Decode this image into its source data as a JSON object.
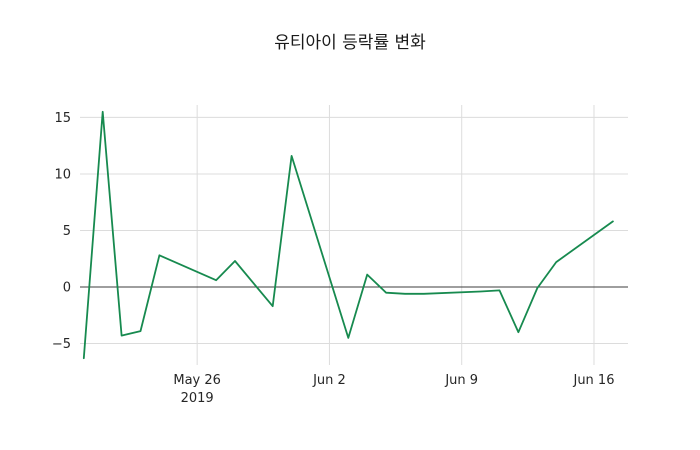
{
  "chart_data": {
    "type": "line",
    "title": "유티아이 등락률 변화",
    "line_color": "#178a4f",
    "grid": true,
    "legend": "none",
    "xlim": [
      -0.2,
      28.8
    ],
    "ylim": [
      -6.9,
      16.1
    ],
    "y_ticks": [
      {
        "value": 15,
        "label": "15"
      },
      {
        "value": 10,
        "label": "10"
      },
      {
        "value": 5,
        "label": "5"
      },
      {
        "value": 0,
        "label": "0"
      },
      {
        "value": -5,
        "label": "−5"
      }
    ],
    "x_ticks": [
      {
        "day": 6,
        "label": "May 26",
        "sublabel": "2019"
      },
      {
        "day": 13,
        "label": "Jun 2",
        "sublabel": ""
      },
      {
        "day": 20,
        "label": "Jun 9",
        "sublabel": ""
      },
      {
        "day": 27,
        "label": "Jun 16",
        "sublabel": ""
      }
    ],
    "zero_line": true,
    "points": [
      {
        "date": "May 20",
        "day": 0,
        "value": -6.3
      },
      {
        "date": "May 21",
        "day": 1,
        "value": 15.5
      },
      {
        "date": "May 22",
        "day": 2,
        "value": -4.3
      },
      {
        "date": "May 23",
        "day": 3,
        "value": -3.9
      },
      {
        "date": "May 24",
        "day": 4,
        "value": 2.8
      },
      {
        "date": "May 27",
        "day": 7,
        "value": 0.6
      },
      {
        "date": "May 28",
        "day": 8,
        "value": 2.3
      },
      {
        "date": "May 29",
        "day": 9,
        "value": 0.3
      },
      {
        "date": "May 30",
        "day": 10,
        "value": -1.7
      },
      {
        "date": "May 31",
        "day": 11,
        "value": 11.6
      },
      {
        "date": "Jun 3",
        "day": 14,
        "value": -4.5
      },
      {
        "date": "Jun 4",
        "day": 15,
        "value": 1.1
      },
      {
        "date": "Jun 5",
        "day": 16,
        "value": -0.5
      },
      {
        "date": "Jun 6",
        "day": 17,
        "value": -0.6
      },
      {
        "date": "Jun 7",
        "day": 18,
        "value": -0.6
      },
      {
        "date": "Jun 10",
        "day": 21,
        "value": -0.4
      },
      {
        "date": "Jun 11",
        "day": 22,
        "value": -0.3
      },
      {
        "date": "Jun 12",
        "day": 23,
        "value": -4.0
      },
      {
        "date": "Jun 13",
        "day": 24,
        "value": -0.1
      },
      {
        "date": "Jun 14",
        "day": 25,
        "value": 2.2
      },
      {
        "date": "Jun 17",
        "day": 28,
        "value": 5.8
      }
    ],
    "colors": {
      "grid": "#dcdcdc",
      "zero_line": "#3c3c3c",
      "text": "#262626",
      "background": "#ffffff"
    }
  }
}
